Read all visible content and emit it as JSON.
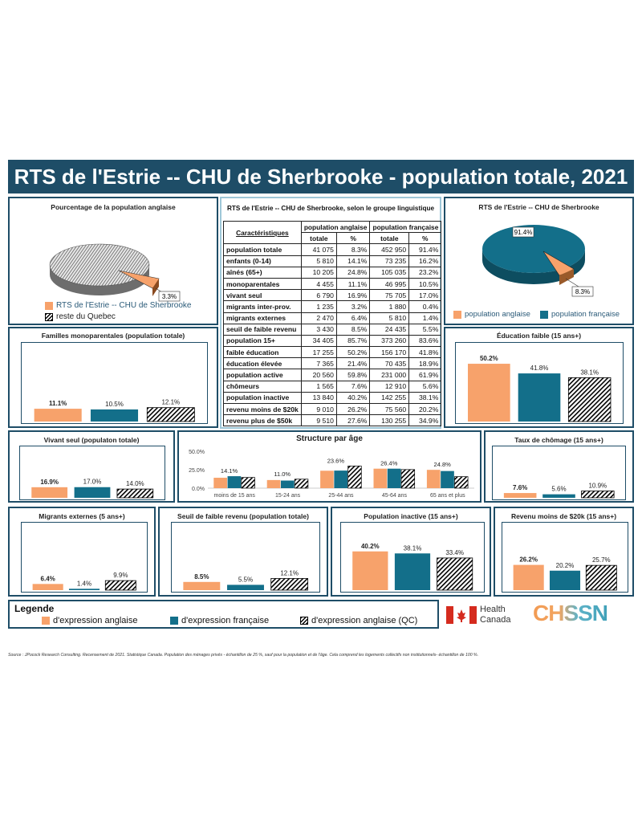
{
  "title": "RTS de l'Estrie -- CHU de Sherbrooke - population totale, 2021",
  "colors": {
    "anglaise": "#f7a26b",
    "francaise": "#136f8a",
    "qc": "hatch",
    "dark": "#1e4d67"
  },
  "pie1": {
    "title": "Pourcentage  de la population  anglaise",
    "label": "3.3%",
    "legend": [
      "RTS de l'Estrie -- CHU de Sherbrooke",
      "reste du Quebec"
    ],
    "values": [
      3.3,
      96.7
    ]
  },
  "pie2": {
    "title": "RTS de l'Estrie -- CHU de Sherbrooke",
    "labels": [
      "91.4%",
      "8.3%"
    ],
    "legend": [
      "population anglaise",
      "population française"
    ],
    "values": [
      8.3,
      91.4
    ]
  },
  "table": {
    "caption": "RTS de l'Estrie -- CHU de Sherbrooke, selon le groupe linguistique",
    "col_char": "Caractéristiques",
    "grp_ang": "population anglaise",
    "grp_fr": "population française",
    "sub_tot": "totale",
    "sub_pct": "%",
    "rows": [
      [
        "population totale",
        "41 075",
        "8.3%",
        "452 950",
        "91.4%"
      ],
      [
        "enfants (0-14)",
        "5 810",
        "14.1%",
        "73 235",
        "16.2%"
      ],
      [
        "aînés (65+)",
        "10 205",
        "24.8%",
        "105 035",
        "23.2%"
      ],
      [
        "monoparentales",
        "4 455",
        "11.1%",
        "46 995",
        "10.5%"
      ],
      [
        "vivant seul",
        "6 790",
        "16.9%",
        "75 705",
        "17.0%"
      ],
      [
        "migrants inter-prov.",
        "1 235",
        "3.2%",
        "1 880",
        "0.4%"
      ],
      [
        "migrants externes",
        "2 470",
        "6.4%",
        "5 810",
        "1.4%"
      ],
      [
        "seuil de faible revenu",
        "3 430",
        "8.5%",
        "24 435",
        "5.5%"
      ],
      [
        "population 15+",
        "34 405",
        "85.7%",
        "373 260",
        "83.6%"
      ],
      [
        "faible éducation",
        "17 255",
        "50.2%",
        "156 170",
        "41.8%"
      ],
      [
        "éducation élevée",
        "7 365",
        "21.4%",
        "70 435",
        "18.9%"
      ],
      [
        "population active",
        "20 560",
        "59.8%",
        "231 000",
        "61.9%"
      ],
      [
        "chômeurs",
        "1 565",
        "7.6%",
        "12 910",
        "5.6%"
      ],
      [
        "population inactive",
        "13 840",
        "40.2%",
        "142 255",
        "38.1%"
      ],
      [
        "revenu moins de $20k",
        "9 010",
        "26.2%",
        "75 560",
        "20.2%"
      ],
      [
        "revenu plus de $50k",
        "9 510",
        "27.6%",
        "130 255",
        "34.9%"
      ]
    ]
  },
  "chart_data": [
    {
      "id": "monoparentales",
      "type": "bar",
      "title": "Familles monoparentales (population  totale)",
      "values": [
        11.1,
        10.5,
        12.1
      ],
      "labels": [
        "11.1%",
        "10.5%",
        "12.1%"
      ],
      "ylim": [
        0,
        60
      ]
    },
    {
      "id": "education",
      "type": "bar",
      "title": "Éducation faible (15 ans+)",
      "values": [
        50.2,
        41.8,
        38.1
      ],
      "labels": [
        "50.2%",
        "41.8%",
        "38.1%"
      ],
      "ylim": [
        0,
        60
      ]
    },
    {
      "id": "vivant",
      "type": "bar",
      "title": "Vivant seul (populaton totale)",
      "values": [
        16.9,
        17.0,
        14.0
      ],
      "labels": [
        "16.9%",
        "17.0%",
        "14.0%"
      ],
      "ylim": [
        0,
        60
      ]
    },
    {
      "id": "chomage",
      "type": "bar",
      "title": "Taux de chômage (15 ans+)",
      "values": [
        7.6,
        5.6,
        10.9
      ],
      "labels": [
        "7.6%",
        "5.6%",
        "10.9%"
      ],
      "ylim": [
        0,
        60
      ]
    },
    {
      "id": "migrants",
      "type": "bar",
      "title": "Migrants externes (5 ans+)",
      "values": [
        6.4,
        1.4,
        9.9
      ],
      "labels": [
        "6.4%",
        "1.4%",
        "9.9%"
      ],
      "ylim": [
        0,
        60
      ]
    },
    {
      "id": "seuil",
      "type": "bar",
      "title": "Seuil de faible revenu (population totale)",
      "values": [
        8.5,
        5.5,
        12.1
      ],
      "labels": [
        "8.5%",
        "5.5%",
        "12.1%"
      ],
      "ylim": [
        0,
        60
      ]
    },
    {
      "id": "inactive",
      "type": "bar",
      "title": "Population  inactive (15 ans+)",
      "values": [
        40.2,
        38.1,
        33.4
      ],
      "labels": [
        "40.2%",
        "38.1%",
        "33.4%"
      ],
      "ylim": [
        0,
        60
      ]
    },
    {
      "id": "revenu",
      "type": "bar",
      "title": "Revenu moins de $20k (15 ans+)",
      "values": [
        26.2,
        20.2,
        25.7
      ],
      "labels": [
        "26.2%",
        "20.2%",
        "25.7%"
      ],
      "ylim": [
        0,
        60
      ]
    },
    {
      "id": "age",
      "type": "bar",
      "title": "Structure par âge",
      "categories": [
        "moins de 15 ans",
        "15-24 ans",
        "25-44 ans",
        "45-64 ans",
        "65 ans et plus"
      ],
      "yticks": [
        "50.0%",
        "25.0%",
        "0.0%"
      ],
      "ylim": [
        0,
        50
      ],
      "series": [
        {
          "values": [
            14.1,
            11.0,
            23.6,
            26.4,
            24.8
          ],
          "labels": [
            "14.1%",
            "11.0%",
            "23.6%",
            "26.4%",
            "24.8%"
          ]
        },
        {
          "values": [
            16.2,
            10.3,
            23.8,
            26.4,
            23.2
          ]
        },
        {
          "values": [
            14.5,
            12.2,
            30.0,
            25.2,
            15.6
          ]
        }
      ]
    }
  ],
  "legend": {
    "title": "Legende",
    "items": [
      "d'expression anglaise",
      "d'expression française",
      "d'expression anglaise (QC)"
    ]
  },
  "logos": {
    "hc_line1": "Health",
    "hc_line2": "Canada",
    "chssn": "CHSSN"
  },
  "source": "Source : JPocock Research Consulting. Recensement de 2021. Statistique Canada. Population des ménages privés - échantillon de 25 %, sauf pour la population et de l'âge. Cela comprend les logements collectifs non institutionnels- échantillon de 100 %."
}
